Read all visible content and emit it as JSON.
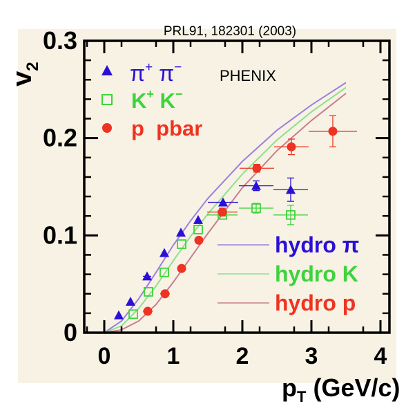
{
  "chart_data": {
    "type": "scatter",
    "reference": "PRL91, 182301 (2003)",
    "experiment": "PHENIX",
    "xlabel": {
      "main": "p",
      "sub": "T",
      "rest": " (GeV/c)"
    },
    "ylabel": {
      "main": "v",
      "sub": "2"
    },
    "xlim": [
      0,
      4.5
    ],
    "ylim": [
      0,
      0.3
    ],
    "x_ticks": [
      {
        "value": 0,
        "label": "0"
      },
      {
        "value": 1,
        "label": "1"
      },
      {
        "value": 2,
        "label": "2"
      },
      {
        "value": 3,
        "label": "3"
      },
      {
        "value": 4,
        "label": "4"
      }
    ],
    "y_ticks": [
      {
        "value": 0,
        "label": "0"
      },
      {
        "value": 0.1,
        "label": "0.1"
      },
      {
        "value": 0.2,
        "label": "0.2"
      },
      {
        "value": 0.3,
        "label": "0.3"
      }
    ],
    "grid": false,
    "legend_position": "top-left",
    "hydro_legend_position": "bottom-right",
    "series": [
      {
        "id": "pion",
        "name": "π⁺ π⁻",
        "legend_label": "π",
        "legend_sup1": "+",
        "legend_sep": " π",
        "legend_sup2": "−",
        "marker": "triangle",
        "color": "#2a10d4",
        "points": [
          {
            "x": 0.21,
            "y": 0.018,
            "xerr": 0.0,
            "yerr": 0.0
          },
          {
            "x": 0.38,
            "y": 0.032,
            "xerr": 0.0,
            "yerr": 0.0
          },
          {
            "x": 0.62,
            "y": 0.058,
            "xerr": 0.06,
            "yerr": 0.0
          },
          {
            "x": 0.87,
            "y": 0.082,
            "xerr": 0.0,
            "yerr": 0.0
          },
          {
            "x": 1.11,
            "y": 0.103,
            "xerr": 0.0,
            "yerr": 0.0
          },
          {
            "x": 1.36,
            "y": 0.116,
            "xerr": 0.0,
            "yerr": 0.0
          },
          {
            "x": 1.72,
            "y": 0.134,
            "xerr": 0.22,
            "yerr": 0.0
          },
          {
            "x": 2.2,
            "y": 0.151,
            "xerr": 0.25,
            "yerr": 0.005
          },
          {
            "x": 2.7,
            "y": 0.147,
            "xerr": 0.25,
            "yerr": 0.012
          }
        ]
      },
      {
        "id": "kaon",
        "name": "K⁺ K⁻",
        "legend_label": "K",
        "legend_sup1": "+",
        "legend_sep": " K",
        "legend_sup2": "−",
        "marker": "open-square",
        "color": "#3cd43c",
        "points": [
          {
            "x": 0.42,
            "y": 0.019,
            "xerr": 0.0,
            "yerr": 0.0
          },
          {
            "x": 0.64,
            "y": 0.042,
            "xerr": 0.0,
            "yerr": 0.0
          },
          {
            "x": 0.87,
            "y": 0.062,
            "xerr": 0.0,
            "yerr": 0.0
          },
          {
            "x": 1.12,
            "y": 0.091,
            "xerr": 0.0,
            "yerr": 0.0
          },
          {
            "x": 1.36,
            "y": 0.106,
            "xerr": 0.0,
            "yerr": 0.0
          },
          {
            "x": 1.71,
            "y": 0.121,
            "xerr": 0.22,
            "yerr": 0.0
          },
          {
            "x": 2.2,
            "y": 0.128,
            "xerr": 0.25,
            "yerr": 0.005
          },
          {
            "x": 2.7,
            "y": 0.121,
            "xerr": 0.25,
            "yerr": 0.01
          }
        ]
      },
      {
        "id": "proton",
        "name": "p pbar",
        "legend_label": "p  pbar",
        "marker": "circle",
        "color": "#ee3322",
        "points": [
          {
            "x": 0.63,
            "y": 0.022,
            "xerr": 0.07,
            "yerr": 0.0
          },
          {
            "x": 0.88,
            "y": 0.04,
            "xerr": 0.07,
            "yerr": 0.0
          },
          {
            "x": 1.12,
            "y": 0.066,
            "xerr": 0.0,
            "yerr": 0.0
          },
          {
            "x": 1.37,
            "y": 0.095,
            "xerr": 0.0,
            "yerr": 0.0
          },
          {
            "x": 1.71,
            "y": 0.124,
            "xerr": 0.22,
            "yerr": 0.004
          },
          {
            "x": 2.21,
            "y": 0.169,
            "xerr": 0.25,
            "yerr": 0.004
          },
          {
            "x": 2.71,
            "y": 0.191,
            "xerr": 0.25,
            "yerr": 0.008
          },
          {
            "x": 3.31,
            "y": 0.207,
            "xerr": 0.35,
            "yerr": 0.016
          }
        ]
      }
    ],
    "hydro": [
      {
        "id": "hydro-pi",
        "name": "hydro π",
        "color": "#9b80e0",
        "legend_color": "#2a10d4",
        "points": [
          [
            0,
            0
          ],
          [
            0.25,
            0.012
          ],
          [
            0.5,
            0.035
          ],
          [
            0.75,
            0.062
          ],
          [
            1.0,
            0.09
          ],
          [
            1.25,
            0.115
          ],
          [
            1.5,
            0.138
          ],
          [
            2.0,
            0.176
          ],
          [
            2.5,
            0.208
          ],
          [
            3.0,
            0.234
          ],
          [
            3.5,
            0.257
          ]
        ]
      },
      {
        "id": "hydro-k",
        "name": "hydro K",
        "color": "#8ee08e",
        "legend_color": "#3cd43c",
        "points": [
          [
            0,
            0
          ],
          [
            0.25,
            0.007
          ],
          [
            0.5,
            0.025
          ],
          [
            0.75,
            0.048
          ],
          [
            1.0,
            0.074
          ],
          [
            1.25,
            0.099
          ],
          [
            1.5,
            0.122
          ],
          [
            2.0,
            0.163
          ],
          [
            2.5,
            0.198
          ],
          [
            3.0,
            0.227
          ],
          [
            3.5,
            0.252
          ]
        ]
      },
      {
        "id": "hydro-p",
        "name": "hydro p",
        "color": "#c87e8c",
        "legend_color": "#ee3322",
        "points": [
          [
            0,
            0
          ],
          [
            0.25,
            0.003
          ],
          [
            0.5,
            0.012
          ],
          [
            0.75,
            0.029
          ],
          [
            1.0,
            0.052
          ],
          [
            1.25,
            0.077
          ],
          [
            1.5,
            0.102
          ],
          [
            2.0,
            0.149
          ],
          [
            2.5,
            0.187
          ],
          [
            3.0,
            0.218
          ],
          [
            3.5,
            0.246
          ]
        ]
      }
    ]
  }
}
